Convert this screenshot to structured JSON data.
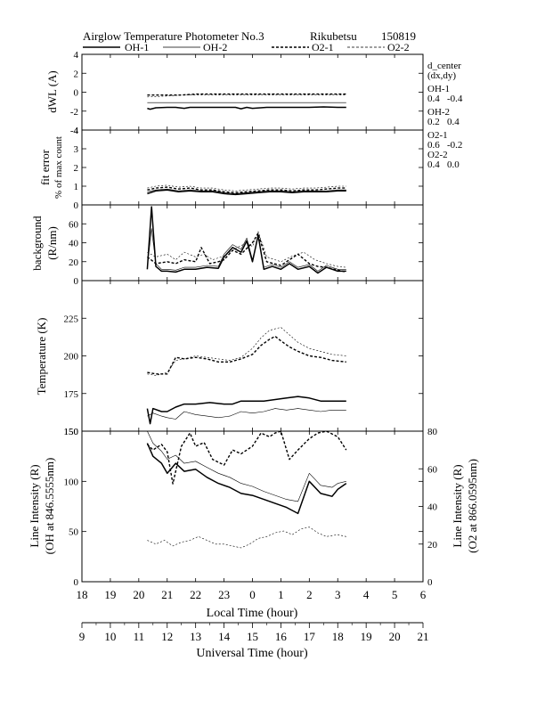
{
  "header": {
    "title": "Airglow Temperature Photometer No.3",
    "station": "Rikubetsu",
    "date": "150819"
  },
  "legend": [
    {
      "name": "OH-1",
      "style": "solid-thick"
    },
    {
      "name": "OH-2",
      "style": "solid-thin"
    },
    {
      "name": "O2-1",
      "style": "dashed-thick"
    },
    {
      "name": "O2-2",
      "style": "dashed-thin"
    }
  ],
  "side_info": {
    "heading": "d_center",
    "subheading": "(dx,dy)",
    "entries": [
      {
        "name": "OH-1",
        "values": "0.4   -0.4"
      },
      {
        "name": "OH-2",
        "values": "0.2   0.4"
      },
      {
        "name": "O2-1",
        "values": "0.6   -0.2"
      },
      {
        "name": "O2-2",
        "values": "0.4   0.0"
      }
    ]
  },
  "axes": {
    "local_time_label": "Local Time (hour)",
    "universal_time_label": "Universal Time (hour)",
    "local_ticks": [
      "18",
      "19",
      "20",
      "21",
      "22",
      "23",
      "0",
      "1",
      "2",
      "3",
      "4",
      "5",
      "6"
    ],
    "universal_ticks": [
      "9",
      "10",
      "11",
      "12",
      "13",
      "14",
      "15",
      "16",
      "17",
      "18",
      "19",
      "20",
      "21"
    ]
  },
  "chart_data": [
    {
      "type": "line",
      "panel": "dwl",
      "ylabel": "dWL (A)",
      "ylim": [
        -4,
        4
      ],
      "yticks": [
        "-4",
        "-2",
        "0",
        "2",
        "4"
      ],
      "xlim_ut": [
        9,
        21
      ],
      "series": [
        {
          "name": "OH-1",
          "x": [
            11.3,
            11.4,
            11.6,
            12.0,
            12.3,
            12.6,
            12.8,
            13.0,
            13.5,
            14.0,
            14.4,
            14.6,
            14.8,
            15.0,
            15.5,
            16.0,
            16.5,
            17.0,
            17.5,
            18.0,
            18.3
          ],
          "y": [
            -1.7,
            -1.8,
            -1.65,
            -1.6,
            -1.6,
            -1.7,
            -1.6,
            -1.6,
            -1.6,
            -1.6,
            -1.6,
            -1.75,
            -1.6,
            -1.7,
            -1.6,
            -1.6,
            -1.6,
            -1.6,
            -1.55,
            -1.6,
            -1.6
          ]
        },
        {
          "name": "OH-2",
          "x": [
            11.3,
            12.0,
            13.0,
            14.0,
            15.0,
            16.0,
            17.0,
            18.0,
            18.3
          ],
          "y": [
            -1.1,
            -1.1,
            -1.1,
            -1.1,
            -1.1,
            -1.1,
            -1.1,
            -1.1,
            -1.1
          ]
        },
        {
          "name": "O2-1",
          "x": [
            11.3,
            12.0,
            12.5,
            13.0,
            14.0,
            15.0,
            16.0,
            17.0,
            18.0,
            18.3
          ],
          "y": [
            -0.3,
            -0.3,
            -0.3,
            -0.2,
            -0.2,
            -0.2,
            -0.2,
            -0.2,
            -0.2,
            -0.2
          ]
        },
        {
          "name": "O2-2",
          "x": [
            11.3,
            12.0,
            12.5,
            13.0,
            14.0,
            15.0,
            16.0,
            17.0,
            18.0,
            18.3
          ],
          "y": [
            -0.5,
            -0.4,
            -0.3,
            -0.3,
            -0.3,
            -0.3,
            -0.3,
            -0.3,
            -0.3,
            -0.3
          ]
        }
      ]
    },
    {
      "type": "line",
      "panel": "fit_error",
      "ylabel": "fit error",
      "ylabel2": "% of max count",
      "ylim": [
        0,
        4
      ],
      "yticks": [
        "0",
        "1",
        "2",
        "3",
        "4"
      ],
      "xlim_ut": [
        9,
        21
      ],
      "series": [
        {
          "name": "OH-1",
          "x": [
            11.3,
            11.6,
            12.0,
            12.4,
            12.8,
            13.2,
            13.6,
            14.0,
            14.4,
            14.8,
            15.2,
            15.6,
            16.0,
            16.4,
            16.8,
            17.2,
            17.6,
            18.0,
            18.3
          ],
          "y": [
            0.6,
            0.75,
            0.8,
            0.7,
            0.75,
            0.7,
            0.7,
            0.6,
            0.55,
            0.6,
            0.65,
            0.7,
            0.7,
            0.65,
            0.7,
            0.7,
            0.7,
            0.75,
            0.75
          ]
        },
        {
          "name": "OH-2",
          "x": [
            11.3,
            11.6,
            12.0,
            12.4,
            12.8,
            13.2,
            13.6,
            14.0,
            14.4,
            14.8,
            15.2,
            15.6,
            16.0,
            16.4,
            16.8,
            17.2,
            17.6,
            18.0,
            18.3
          ],
          "y": [
            0.7,
            0.8,
            0.85,
            0.75,
            0.8,
            0.75,
            0.75,
            0.65,
            0.6,
            0.65,
            0.7,
            0.75,
            0.75,
            0.7,
            0.75,
            0.75,
            0.75,
            0.8,
            0.8
          ]
        },
        {
          "name": "O2-1",
          "x": [
            11.3,
            11.6,
            12.0,
            12.4,
            12.8,
            13.2,
            13.6,
            14.0,
            14.4,
            14.8,
            15.2,
            15.6,
            16.0,
            16.4,
            16.8,
            17.2,
            17.6,
            18.0,
            18.3
          ],
          "y": [
            0.8,
            0.9,
            0.95,
            0.85,
            0.9,
            0.8,
            0.8,
            0.7,
            0.65,
            0.7,
            0.75,
            0.8,
            0.8,
            0.75,
            0.8,
            0.8,
            0.85,
            0.9,
            0.9
          ]
        },
        {
          "name": "O2-2",
          "x": [
            11.3,
            11.6,
            12.0,
            12.4,
            12.8,
            13.2,
            13.6,
            14.0,
            14.4,
            14.8,
            15.2,
            15.6,
            16.0,
            16.4,
            16.8,
            17.2,
            17.6,
            18.0,
            18.3
          ],
          "y": [
            0.9,
            1.0,
            1.05,
            0.95,
            1.0,
            0.9,
            0.9,
            0.8,
            0.75,
            0.8,
            0.85,
            0.9,
            0.9,
            0.85,
            0.9,
            0.9,
            0.95,
            1.0,
            1.0
          ]
        }
      ]
    },
    {
      "type": "line",
      "panel": "background",
      "ylabel": "background",
      "ylabel2": "(R/nm)",
      "ylim": [
        0,
        80
      ],
      "yticks": [
        "0",
        "20",
        "40",
        "60"
      ],
      "xlim_ut": [
        9,
        21
      ],
      "series": [
        {
          "name": "OH-1",
          "x": [
            11.3,
            11.45,
            11.6,
            11.8,
            12.0,
            12.3,
            12.6,
            13.0,
            13.4,
            13.8,
            14.0,
            14.3,
            14.6,
            14.8,
            15.0,
            15.2,
            15.4,
            15.7,
            16.0,
            16.3,
            16.6,
            17.0,
            17.3,
            17.6,
            18.0,
            18.3
          ],
          "y": [
            12,
            78,
            15,
            10,
            10,
            9,
            12,
            12,
            14,
            13,
            25,
            35,
            30,
            42,
            20,
            48,
            12,
            15,
            12,
            18,
            12,
            15,
            8,
            14,
            10,
            10
          ]
        },
        {
          "name": "OH-2",
          "x": [
            11.3,
            11.45,
            11.6,
            11.8,
            12.0,
            12.3,
            12.6,
            13.0,
            13.4,
            13.8,
            14.0,
            14.3,
            14.6,
            14.8,
            15.0,
            15.2,
            15.4,
            15.7,
            16.0,
            16.3,
            16.6,
            17.0,
            17.3,
            17.6,
            18.0,
            18.3
          ],
          "y": [
            14,
            55,
            18,
            12,
            12,
            11,
            14,
            14,
            16,
            15,
            28,
            38,
            33,
            45,
            22,
            46,
            14,
            17,
            14,
            20,
            14,
            17,
            10,
            16,
            12,
            12
          ]
        },
        {
          "name": "O2-1",
          "x": [
            11.3,
            11.6,
            12.0,
            12.3,
            12.6,
            13.0,
            13.2,
            13.5,
            13.8,
            14.0,
            14.3,
            14.6,
            15.0,
            15.2,
            15.5,
            16.0,
            16.3,
            16.6,
            17.0,
            17.3,
            17.6,
            18.0,
            18.3
          ],
          "y": [
            25,
            18,
            20,
            18,
            22,
            20,
            35,
            18,
            20,
            22,
            32,
            28,
            40,
            50,
            20,
            16,
            22,
            28,
            18,
            15,
            14,
            11,
            9
          ]
        },
        {
          "name": "O2-2",
          "x": [
            11.3,
            11.6,
            12.0,
            12.3,
            12.6,
            13.0,
            13.3,
            13.6,
            14.0,
            14.4,
            14.8,
            15.0,
            15.2,
            15.5,
            16.0,
            16.4,
            16.8,
            17.2,
            17.6,
            18.0,
            18.3
          ],
          "y": [
            30,
            25,
            28,
            22,
            30,
            25,
            28,
            22,
            26,
            34,
            40,
            36,
            52,
            25,
            20,
            26,
            30,
            22,
            18,
            15,
            14
          ]
        }
      ]
    },
    {
      "type": "line",
      "panel": "temperature",
      "ylabel": "Temperature (K)",
      "ylim": [
        150,
        250
      ],
      "yticks": [
        "150",
        "175",
        "200",
        "225"
      ],
      "xlim_ut": [
        9,
        21
      ],
      "series": [
        {
          "name": "OH-1",
          "x": [
            11.3,
            11.4,
            11.5,
            11.8,
            12.0,
            12.3,
            12.6,
            13.0,
            13.5,
            14.0,
            14.3,
            14.6,
            15.0,
            15.4,
            15.8,
            16.2,
            16.6,
            17.0,
            17.4,
            17.8,
            18.3
          ],
          "y": [
            165,
            155,
            165,
            163,
            163,
            166,
            168,
            168,
            169,
            168,
            168,
            170,
            170,
            170,
            171,
            172,
            173,
            172,
            170,
            170,
            170
          ]
        },
        {
          "name": "OH-2",
          "x": [
            11.3,
            11.5,
            11.8,
            12.0,
            12.3,
            12.6,
            13.0,
            13.4,
            13.8,
            14.2,
            14.6,
            15.0,
            15.4,
            15.8,
            16.2,
            16.6,
            17.0,
            17.4,
            17.8,
            18.3
          ],
          "y": [
            160,
            162,
            160,
            159,
            158,
            163,
            161,
            160,
            159,
            160,
            163,
            162,
            163,
            165,
            164,
            165,
            164,
            163,
            164,
            164
          ]
        },
        {
          "name": "O2-1",
          "x": [
            11.3,
            11.6,
            12.0,
            12.3,
            12.6,
            13.0,
            13.4,
            13.8,
            14.2,
            14.6,
            15.0,
            15.3,
            15.6,
            15.8,
            16.0,
            16.3,
            16.6,
            17.0,
            17.4,
            17.8,
            18.3
          ],
          "y": [
            189,
            188,
            188,
            199,
            198,
            199,
            198,
            196,
            196,
            198,
            201,
            207,
            211,
            213,
            210,
            206,
            203,
            200,
            199,
            197,
            196
          ]
        },
        {
          "name": "O2-2",
          "x": [
            11.3,
            11.6,
            12.0,
            12.3,
            12.6,
            13.0,
            13.4,
            13.8,
            14.2,
            14.6,
            15.0,
            15.3,
            15.6,
            15.8,
            16.0,
            16.3,
            16.6,
            17.0,
            17.4,
            17.8,
            18.3
          ],
          "y": [
            188,
            187,
            189,
            197,
            198,
            200,
            199,
            198,
            197,
            199,
            205,
            212,
            217,
            218,
            219,
            214,
            209,
            205,
            203,
            201,
            200
          ]
        }
      ]
    },
    {
      "type": "line",
      "panel": "intensity",
      "ylabel": "Line Intensity (R)",
      "ylabel2": "(OH at 846.5555nm)",
      "y2label": "Line Intensity (R)",
      "y2label2": "(O2 at 866.0595nm)",
      "ylim": [
        0,
        150
      ],
      "yticks": [
        "0",
        "50",
        "100",
        "150"
      ],
      "y2lim": [
        0,
        80
      ],
      "y2ticks": [
        "0",
        "20",
        "40",
        "60",
        "80"
      ],
      "xlim_ut": [
        9,
        21
      ],
      "series": [
        {
          "name": "OH-1",
          "axis": "left",
          "x": [
            11.3,
            11.5,
            11.8,
            12.0,
            12.3,
            12.6,
            13.0,
            13.4,
            13.8,
            14.2,
            14.6,
            15.0,
            15.4,
            15.8,
            16.2,
            16.6,
            17.0,
            17.4,
            17.8,
            18.0,
            18.3
          ],
          "y": [
            138,
            125,
            118,
            108,
            118,
            110,
            112,
            104,
            98,
            94,
            88,
            86,
            82,
            78,
            74,
            68,
            100,
            88,
            85,
            92,
            98
          ]
        },
        {
          "name": "OH-2",
          "axis": "left",
          "x": [
            11.3,
            11.5,
            11.8,
            12.0,
            12.3,
            12.6,
            13.0,
            13.4,
            13.8,
            14.2,
            14.6,
            15.0,
            15.4,
            15.8,
            16.2,
            16.6,
            17.0,
            17.4,
            17.8,
            18.0,
            18.3
          ],
          "y": [
            150,
            138,
            130,
            122,
            126,
            118,
            120,
            114,
            108,
            104,
            98,
            95,
            90,
            86,
            82,
            80,
            108,
            96,
            94,
            98,
            100
          ]
        },
        {
          "name": "O2-1",
          "axis": "right",
          "x": [
            11.3,
            11.5,
            11.8,
            12.0,
            12.2,
            12.5,
            12.8,
            13.0,
            13.3,
            13.6,
            14.0,
            14.3,
            14.6,
            15.0,
            15.3,
            15.6,
            15.8,
            16.0,
            16.3,
            16.6,
            17.0,
            17.3,
            17.6,
            18.0,
            18.3
          ],
          "y": [
            73,
            70,
            73,
            69,
            52,
            72,
            79,
            72,
            74,
            65,
            62,
            70,
            68,
            72,
            79,
            77,
            79,
            80,
            65,
            70,
            76,
            79,
            80,
            77,
            70
          ]
        },
        {
          "name": "O2-2",
          "axis": "right",
          "x": [
            11.3,
            11.6,
            11.9,
            12.2,
            12.5,
            12.8,
            13.1,
            13.4,
            13.7,
            14.0,
            14.3,
            14.6,
            14.9,
            15.2,
            15.5,
            15.8,
            16.1,
            16.4,
            16.7,
            17.0,
            17.3,
            17.6,
            18.0,
            18.3
          ],
          "y": [
            22,
            20,
            22,
            19,
            21,
            22,
            24,
            22,
            20,
            20,
            19,
            18,
            20,
            23,
            24,
            26,
            27,
            25,
            28,
            29,
            26,
            24,
            25,
            24
          ]
        }
      ]
    }
  ]
}
